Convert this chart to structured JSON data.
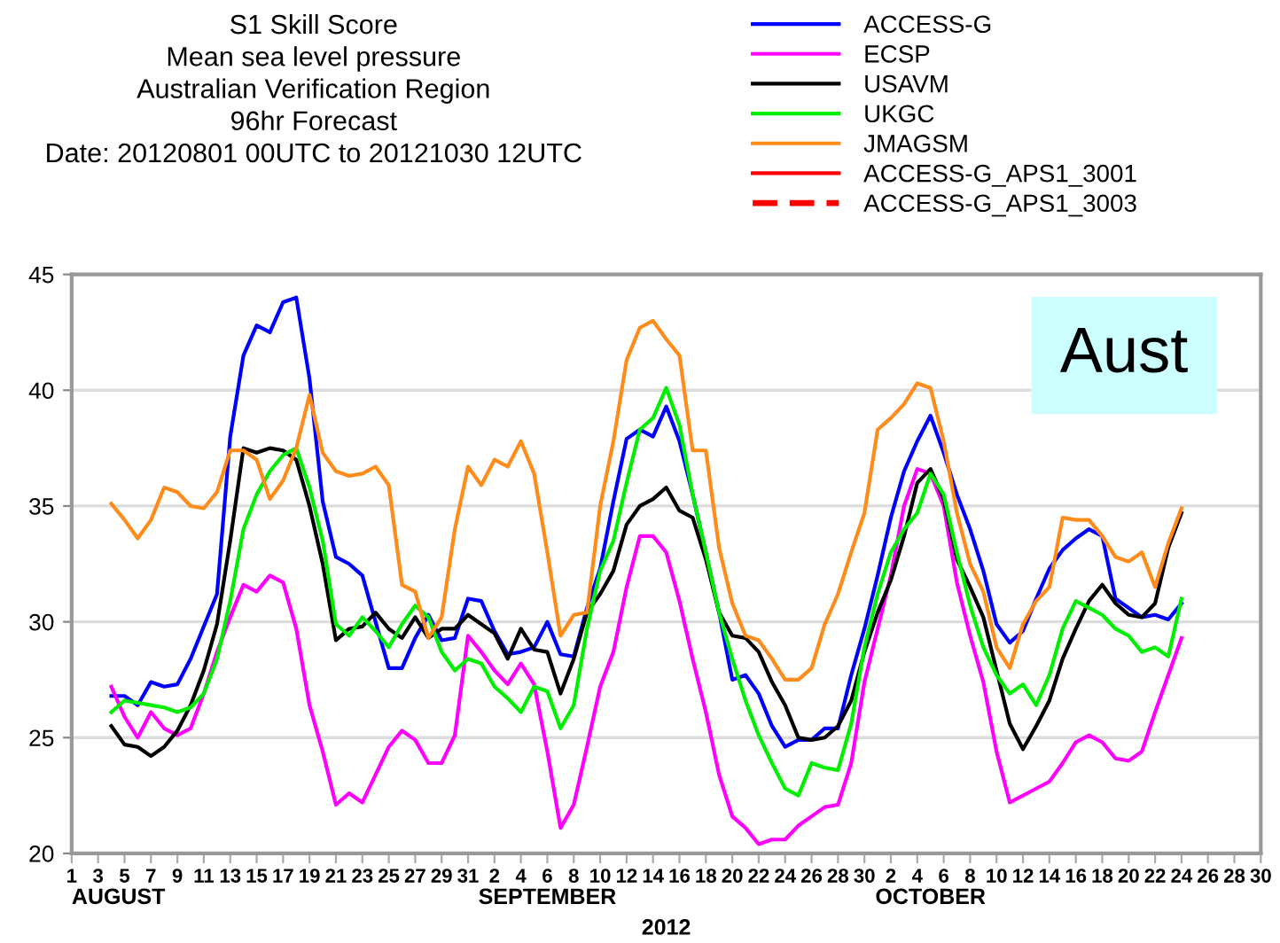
{
  "chart_data": {
    "type": "line",
    "title": "S1 Skill Score",
    "subtitle": "Mean sea level pressure\nAustralian Verification Region\n96hr Forecast\nDate: 20120801 00UTC to 20121030 12UTC",
    "xlabel": "2012",
    "annotations": [
      "Aust",
      "AUGUST",
      "SEPTEMBER",
      "OCTOBER"
    ],
    "x": [
      "2012-08-04",
      "2012-08-05",
      "2012-08-06",
      "2012-08-07",
      "2012-08-08",
      "2012-08-09",
      "2012-08-10",
      "2012-08-11",
      "2012-08-12",
      "2012-08-13",
      "2012-08-14",
      "2012-08-15",
      "2012-08-16",
      "2012-08-17",
      "2012-08-18",
      "2012-08-19",
      "2012-08-20",
      "2012-08-21",
      "2012-08-22",
      "2012-08-23",
      "2012-08-24",
      "2012-08-25",
      "2012-08-26",
      "2012-08-27",
      "2012-08-28",
      "2012-08-29",
      "2012-08-30",
      "2012-08-31",
      "2012-09-01",
      "2012-09-02",
      "2012-09-03",
      "2012-09-04",
      "2012-09-05",
      "2012-09-06",
      "2012-09-07",
      "2012-09-08",
      "2012-09-09",
      "2012-09-10",
      "2012-09-11",
      "2012-09-12",
      "2012-09-13",
      "2012-09-14",
      "2012-09-15",
      "2012-09-16",
      "2012-09-17",
      "2012-09-18",
      "2012-09-19",
      "2012-09-20",
      "2012-09-21",
      "2012-09-22",
      "2012-09-23",
      "2012-09-24",
      "2012-09-25",
      "2012-09-26",
      "2012-09-27",
      "2012-09-28",
      "2012-09-29",
      "2012-09-30",
      "2012-10-01",
      "2012-10-02",
      "2012-10-03",
      "2012-10-04",
      "2012-10-05",
      "2012-10-06",
      "2012-10-07",
      "2012-10-08",
      "2012-10-09",
      "2012-10-10",
      "2012-10-11",
      "2012-10-12",
      "2012-10-13",
      "2012-10-14",
      "2012-10-15",
      "2012-10-16",
      "2012-10-17",
      "2012-10-18",
      "2012-10-19",
      "2012-10-20",
      "2012-10-21",
      "2012-10-22",
      "2012-10-23",
      "2012-10-24"
    ],
    "series": [
      {
        "name": "ACCESS-G",
        "color": "#0000ff",
        "values": [
          26.8,
          26.8,
          26.4,
          27.4,
          27.2,
          27.3,
          28.4,
          29.8,
          31.2,
          38.0,
          41.5,
          42.8,
          42.5,
          43.8,
          44.0,
          40.5,
          35.2,
          32.8,
          32.5,
          32.0,
          30.0,
          28.0,
          28.0,
          29.3,
          30.3,
          29.2,
          29.3,
          31.0,
          30.9,
          29.6,
          28.6,
          28.7,
          28.9,
          30.0,
          28.6,
          28.5,
          30.6,
          32.3,
          35.2,
          37.9,
          38.3,
          38.0,
          39.3,
          37.8,
          35.5,
          33.0,
          30.4,
          27.5,
          27.7,
          26.9,
          25.5,
          24.6,
          24.9,
          24.9,
          25.4,
          25.4,
          27.7,
          29.7,
          32.0,
          34.5,
          36.5,
          37.8,
          38.9,
          37.3,
          35.5,
          34.0,
          32.2,
          29.9,
          29.1,
          29.6,
          31.0,
          32.3,
          33.1,
          33.6,
          34.0,
          33.7,
          31.0,
          30.6,
          30.2,
          30.3,
          30.1,
          30.8
        ]
      },
      {
        "name": "ECSP",
        "color": "#ff00ff",
        "values": [
          27.2,
          25.9,
          25.0,
          26.1,
          25.4,
          25.1,
          25.4,
          26.9,
          28.7,
          30.2,
          31.6,
          31.3,
          32.0,
          31.7,
          29.7,
          26.4,
          24.4,
          22.1,
          22.6,
          22.2,
          23.4,
          24.6,
          25.3,
          24.9,
          23.9,
          23.9,
          25.1,
          29.4,
          28.7,
          27.9,
          27.3,
          28.2,
          27.3,
          24.4,
          21.1,
          22.1,
          24.6,
          27.2,
          28.7,
          31.5,
          33.7,
          33.7,
          33.0,
          30.9,
          28.4,
          26.1,
          23.4,
          21.6,
          21.1,
          20.4,
          20.6,
          20.6,
          21.2,
          21.6,
          22.0,
          22.1,
          23.9,
          27.4,
          29.7,
          32.0,
          35.0,
          36.6,
          36.4,
          35.0,
          31.7,
          29.4,
          27.4,
          24.4,
          22.2,
          22.5,
          22.8,
          23.1,
          23.9,
          24.8,
          25.1,
          24.8,
          24.1,
          24.0,
          24.4,
          26.1,
          27.7,
          29.3
        ]
      },
      {
        "name": "USAVM",
        "color": "#000000",
        "values": [
          25.5,
          24.7,
          24.6,
          24.2,
          24.6,
          25.3,
          26.4,
          27.9,
          29.9,
          33.5,
          37.5,
          37.3,
          37.5,
          37.4,
          37.0,
          35.0,
          32.5,
          29.2,
          29.7,
          29.8,
          30.4,
          29.7,
          29.3,
          30.2,
          29.3,
          29.7,
          29.7,
          30.3,
          29.9,
          29.5,
          28.4,
          29.7,
          28.8,
          28.7,
          26.9,
          28.4,
          30.4,
          31.2,
          32.2,
          34.2,
          35.0,
          35.3,
          35.8,
          34.8,
          34.5,
          32.7,
          30.4,
          29.4,
          29.3,
          28.7,
          27.4,
          26.4,
          25.0,
          24.9,
          25.0,
          25.5,
          26.6,
          28.7,
          30.4,
          31.8,
          33.7,
          36.0,
          36.6,
          35.3,
          32.7,
          31.5,
          30.2,
          27.9,
          25.6,
          24.5,
          25.5,
          26.6,
          28.4,
          29.7,
          30.9,
          31.6,
          30.8,
          30.3,
          30.2,
          30.8,
          33.2,
          34.7
        ]
      },
      {
        "name": "UKGC",
        "color": "#00ee00",
        "values": [
          26.1,
          26.6,
          26.5,
          26.4,
          26.3,
          26.1,
          26.3,
          26.9,
          28.4,
          30.9,
          34.0,
          35.5,
          36.5,
          37.2,
          37.5,
          35.8,
          33.5,
          29.9,
          29.4,
          30.2,
          29.6,
          28.9,
          29.9,
          30.7,
          30.2,
          28.7,
          27.9,
          28.4,
          28.2,
          27.2,
          26.7,
          26.1,
          27.2,
          27.0,
          25.4,
          26.4,
          29.7,
          32.2,
          33.5,
          36.0,
          38.3,
          38.8,
          40.1,
          38.5,
          35.5,
          33.0,
          30.4,
          28.4,
          26.6,
          25.1,
          23.9,
          22.8,
          22.5,
          23.9,
          23.7,
          23.6,
          25.6,
          28.9,
          31.2,
          33.0,
          34.0,
          34.7,
          36.4,
          35.5,
          33.0,
          30.7,
          28.9,
          27.7,
          26.9,
          27.3,
          26.4,
          27.7,
          29.7,
          30.9,
          30.6,
          30.3,
          29.7,
          29.4,
          28.7,
          28.9,
          28.5,
          31.0
        ]
      },
      {
        "name": "JMAGSM",
        "color": "#ff8c1a",
        "values": [
          35.1,
          34.4,
          33.6,
          34.4,
          35.8,
          35.6,
          35.0,
          34.9,
          35.6,
          37.4,
          37.4,
          37.0,
          35.3,
          36.1,
          37.5,
          39.8,
          37.3,
          36.5,
          36.3,
          36.4,
          36.7,
          35.9,
          31.6,
          31.3,
          29.3,
          30.2,
          34.0,
          36.7,
          35.9,
          37.0,
          36.7,
          37.8,
          36.4,
          33.0,
          29.4,
          30.3,
          30.4,
          35.0,
          37.8,
          41.3,
          42.7,
          43.0,
          42.2,
          41.5,
          37.4,
          37.4,
          33.2,
          30.8,
          29.4,
          29.2,
          28.4,
          27.5,
          27.5,
          28.0,
          29.9,
          31.2,
          33.0,
          34.7,
          38.3,
          38.8,
          39.4,
          40.3,
          40.1,
          37.8,
          34.7,
          32.5,
          31.3,
          28.9,
          28.0,
          29.9,
          30.9,
          31.5,
          34.5,
          34.4,
          34.4,
          33.7,
          32.8,
          32.6,
          33.0,
          31.5,
          33.4,
          34.9
        ]
      },
      {
        "name": "ACCESS-G_APS1_3001",
        "color": "#ff0000",
        "values": [
          null,
          null,
          null,
          null,
          null,
          null,
          null,
          null,
          null,
          null,
          null,
          null,
          null,
          null,
          null,
          null,
          null,
          null,
          null,
          null,
          null,
          null,
          null,
          null,
          null,
          null,
          null,
          null,
          null,
          null,
          null,
          null,
          null,
          null,
          null,
          null,
          null,
          null,
          null,
          null,
          null,
          null,
          null,
          null,
          null,
          null,
          null,
          null,
          null,
          null,
          null,
          null,
          null,
          null,
          null,
          null,
          null,
          null,
          null,
          null,
          null,
          null,
          null,
          null,
          null,
          null,
          null,
          null,
          null,
          null,
          null,
          null,
          null,
          null,
          null,
          null,
          null,
          null,
          null,
          null,
          null,
          null
        ]
      },
      {
        "name": "ACCESS-G_APS1_3003",
        "color": "#ff0000",
        "line_style": "dashed",
        "values": [
          null,
          null,
          null,
          null,
          null,
          null,
          null,
          null,
          null,
          null,
          null,
          null,
          null,
          null,
          null,
          null,
          null,
          null,
          null,
          null,
          null,
          null,
          null,
          null,
          null,
          null,
          null,
          null,
          null,
          null,
          null,
          null,
          null,
          null,
          null,
          null,
          null,
          null,
          null,
          null,
          null,
          null,
          null,
          null,
          null,
          null,
          null,
          null,
          null,
          null,
          null,
          null,
          null,
          null,
          null,
          null,
          null,
          null,
          null,
          null,
          null,
          null,
          null,
          null,
          null,
          null,
          null,
          null,
          null,
          null,
          null,
          null,
          null,
          null,
          null,
          null,
          null,
          null,
          null,
          null,
          null,
          null
        ]
      }
    ],
    "xlim": [
      "2012-08-01",
      "2012-10-30"
    ],
    "xticks": [
      {
        "value": "2012-08-01",
        "label": "1"
      },
      {
        "value": "2012-08-03",
        "label": "3"
      },
      {
        "value": "2012-08-05",
        "label": "5"
      },
      {
        "value": "2012-08-07",
        "label": "7"
      },
      {
        "value": "2012-08-09",
        "label": "9"
      },
      {
        "value": "2012-08-11",
        "label": "11"
      },
      {
        "value": "2012-08-13",
        "label": "13"
      },
      {
        "value": "2012-08-15",
        "label": "15"
      },
      {
        "value": "2012-08-17",
        "label": "17"
      },
      {
        "value": "2012-08-19",
        "label": "19"
      },
      {
        "value": "2012-08-21",
        "label": "21"
      },
      {
        "value": "2012-08-23",
        "label": "23"
      },
      {
        "value": "2012-08-25",
        "label": "25"
      },
      {
        "value": "2012-08-27",
        "label": "27"
      },
      {
        "value": "2012-08-29",
        "label": "29"
      },
      {
        "value": "2012-08-31",
        "label": "31"
      },
      {
        "value": "2012-09-02",
        "label": "2"
      },
      {
        "value": "2012-09-04",
        "label": "4"
      },
      {
        "value": "2012-09-06",
        "label": "6"
      },
      {
        "value": "2012-09-08",
        "label": "8"
      },
      {
        "value": "2012-09-10",
        "label": "10"
      },
      {
        "value": "2012-09-12",
        "label": "12"
      },
      {
        "value": "2012-09-14",
        "label": "14"
      },
      {
        "value": "2012-09-16",
        "label": "16"
      },
      {
        "value": "2012-09-18",
        "label": "18"
      },
      {
        "value": "2012-09-20",
        "label": "20"
      },
      {
        "value": "2012-09-22",
        "label": "22"
      },
      {
        "value": "2012-09-24",
        "label": "24"
      },
      {
        "value": "2012-09-26",
        "label": "26"
      },
      {
        "value": "2012-09-28",
        "label": "28"
      },
      {
        "value": "2012-09-30",
        "label": "30"
      },
      {
        "value": "2012-10-02",
        "label": "2"
      },
      {
        "value": "2012-10-04",
        "label": "4"
      },
      {
        "value": "2012-10-06",
        "label": "6"
      },
      {
        "value": "2012-10-08",
        "label": "8"
      },
      {
        "value": "2012-10-10",
        "label": "10"
      },
      {
        "value": "2012-10-12",
        "label": "12"
      },
      {
        "value": "2012-10-14",
        "label": "14"
      },
      {
        "value": "2012-10-16",
        "label": "16"
      },
      {
        "value": "2012-10-18",
        "label": "18"
      },
      {
        "value": "2012-10-20",
        "label": "20"
      },
      {
        "value": "2012-10-22",
        "label": "22"
      },
      {
        "value": "2012-10-24",
        "label": "24"
      },
      {
        "value": "2012-10-26",
        "label": "26"
      },
      {
        "value": "2012-10-28",
        "label": "28"
      },
      {
        "value": "2012-10-30",
        "label": "30"
      }
    ],
    "ylim": [
      20,
      45
    ],
    "yticks": [
      20,
      25,
      30,
      35,
      40,
      45
    ],
    "grid": "y",
    "legend": "top right",
    "line_style": "solid",
    "marker": "none"
  }
}
